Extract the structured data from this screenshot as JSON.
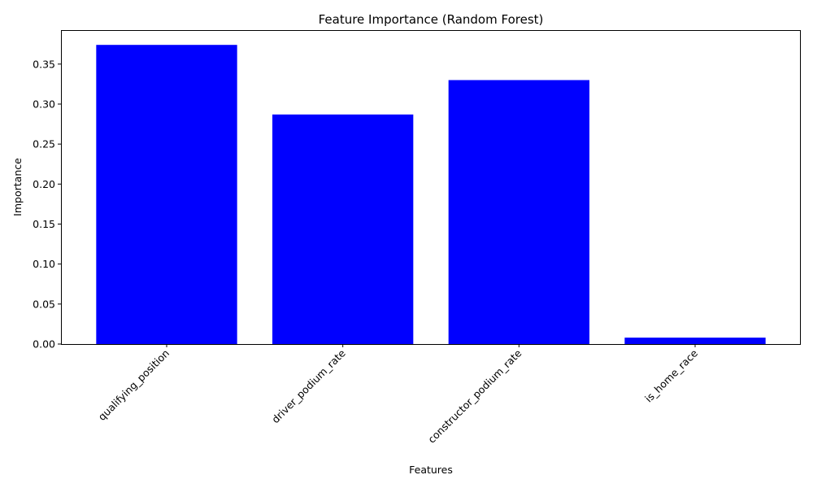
{
  "chart_data": {
    "type": "bar",
    "title": "Feature Importance (Random Forest)",
    "xlabel": "Features",
    "ylabel": "Importance",
    "categories": [
      "qualifying_position",
      "driver_podium_rate",
      "constructor_podium_rate",
      "is_home_race"
    ],
    "values": [
      0.374,
      0.287,
      0.33,
      0.008
    ],
    "ylim": [
      0,
      0.3925
    ],
    "yticks": [
      0.0,
      0.05,
      0.1,
      0.15,
      0.2,
      0.25,
      0.3,
      0.35
    ],
    "ytick_labels": [
      "0.00",
      "0.05",
      "0.10",
      "0.15",
      "0.20",
      "0.25",
      "0.30",
      "0.35"
    ],
    "xtick_rotation": 45,
    "bar_color": "#0000ff",
    "grid": false,
    "legend": "none"
  }
}
